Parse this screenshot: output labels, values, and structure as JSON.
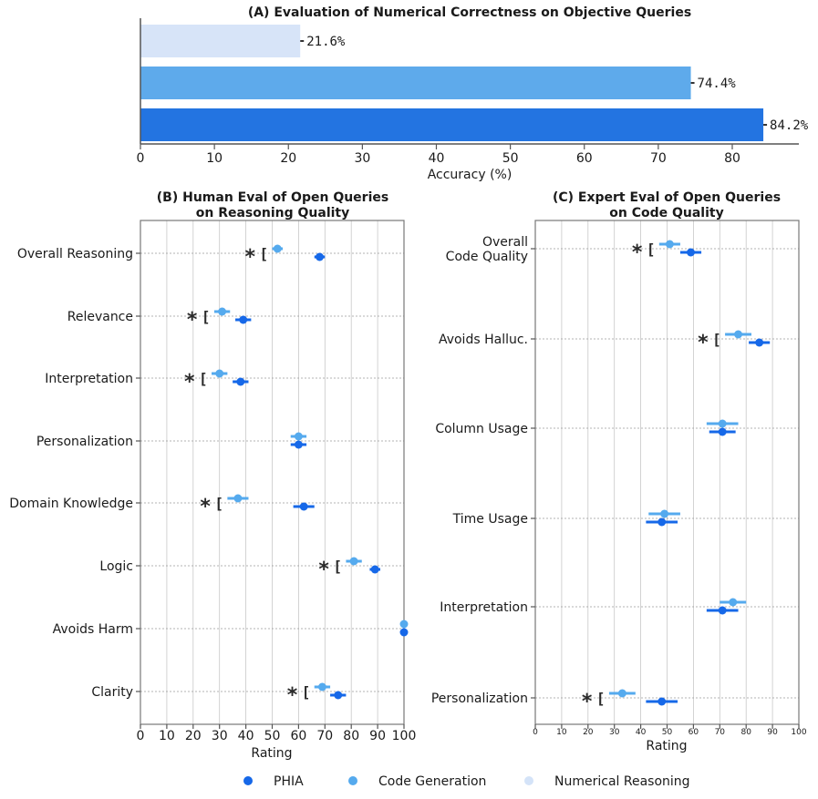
{
  "colors": {
    "phia": "#1668e8",
    "code_generation": "#55aaee",
    "numerical_reasoning": "#d4e3f8",
    "bar_numerical": "#d7e4f8",
    "bar_code": "#5eaaeb",
    "bar_phia": "#2374e1"
  },
  "legend": [
    {
      "name": "PHIA",
      "color": "#1668e8"
    },
    {
      "name": "Code Generation",
      "color": "#55aaee"
    },
    {
      "name": "Numerical Reasoning",
      "color": "#d4e3f8"
    }
  ],
  "chart_data": [
    {
      "id": "A",
      "type": "bar",
      "orientation": "horizontal",
      "title": "(A) Evaluation of Numerical Correctness on Objective Queries",
      "xlabel": "Accuracy (%)",
      "ylabel": "",
      "xlim": [
        0,
        89
      ],
      "xticks": [
        "0",
        "10",
        "20",
        "30",
        "40",
        "50",
        "60",
        "70",
        "80"
      ],
      "categories": [
        "Numerical Reasoning",
        "Code Generation",
        "PHIA"
      ],
      "values": [
        21.6,
        74.4,
        84.2
      ],
      "value_labels": [
        "21.6%",
        "74.4%",
        "84.2%"
      ]
    },
    {
      "id": "B",
      "type": "scatter",
      "title_lines": [
        "(B) Human Eval of Open Queries",
        "on Reasoning Quality"
      ],
      "xlabel": "Rating",
      "xlim": [
        0,
        100
      ],
      "xticks": [
        "0",
        "10",
        "20",
        "30",
        "40",
        "50",
        "60",
        "70",
        "80",
        "90",
        "100"
      ],
      "grid": true,
      "categories": [
        "Overall Reasoning",
        "Relevance",
        "Interpretation",
        "Personalization",
        "Domain Knowledge",
        "Logic",
        "Avoids Harm",
        "Clarity"
      ],
      "series": [
        {
          "name": "Code Generation",
          "values": [
            52,
            31,
            30,
            60,
            37,
            81,
            100,
            69
          ],
          "err": [
            2,
            3,
            3,
            3,
            4,
            3,
            0,
            3
          ]
        },
        {
          "name": "PHIA",
          "values": [
            68,
            39,
            38,
            60,
            62,
            89,
            100,
            75
          ],
          "err": [
            2,
            3,
            3,
            3,
            4,
            2,
            0,
            3
          ]
        }
      ],
      "significant": [
        true,
        true,
        true,
        false,
        true,
        true,
        false,
        true
      ],
      "star_label": "*",
      "bracket_label": "["
    },
    {
      "id": "C",
      "type": "scatter",
      "title_lines": [
        "(C) Expert Eval of Open Queries",
        "on Code Quality"
      ],
      "xlabel": "Rating",
      "xlim": [
        0,
        100
      ],
      "xticks": [
        "0",
        "10",
        "20",
        "30",
        "40",
        "50",
        "60",
        "70",
        "80",
        "90",
        "100"
      ],
      "grid": true,
      "categories": [
        [
          "Overall",
          "Code Quality"
        ],
        [
          "Avoids Halluc."
        ],
        [
          "Column Usage"
        ],
        [
          "Time Usage"
        ],
        [
          "Interpretation"
        ],
        [
          "Personalization"
        ]
      ],
      "series": [
        {
          "name": "Code Generation",
          "values": [
            51,
            77,
            71,
            49,
            75,
            33
          ],
          "err": [
            4,
            5,
            6,
            6,
            5,
            5
          ]
        },
        {
          "name": "PHIA",
          "values": [
            59,
            85,
            71,
            48,
            71,
            48
          ],
          "err": [
            4,
            4,
            5,
            6,
            6,
            6
          ]
        }
      ],
      "significant": [
        true,
        true,
        false,
        false,
        false,
        true
      ],
      "star_label": "*",
      "bracket_label": "["
    }
  ]
}
